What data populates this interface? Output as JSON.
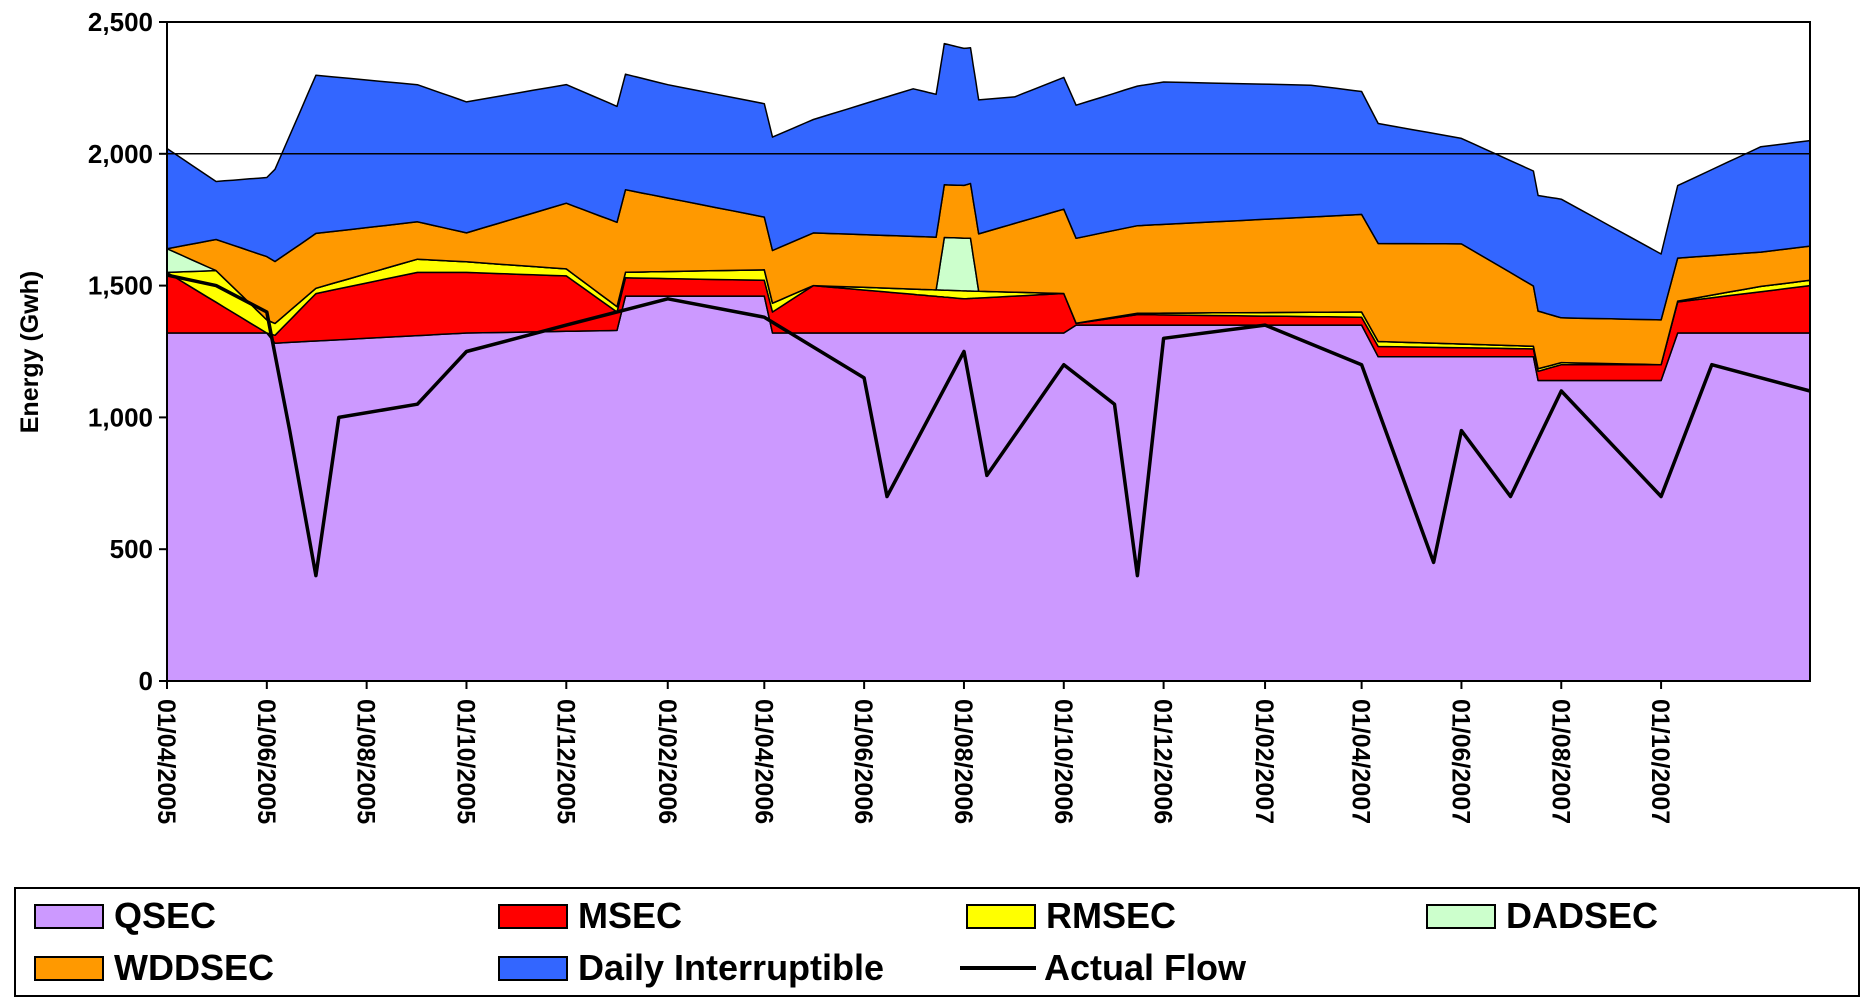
{
  "chart_data": {
    "type": "area",
    "title": "",
    "xlabel": "",
    "ylabel": "Energy (Gwh)",
    "ylim": [
      0,
      2500
    ],
    "y_ticks": [
      "0",
      "500",
      "1,000",
      "1,500",
      "2,000",
      "2,500"
    ],
    "x_range": [
      "2005-04-01",
      "2007-12-31"
    ],
    "x_ticks": [
      "01/04/2005",
      "01/06/2005",
      "01/08/2005",
      "01/10/2005",
      "01/12/2005",
      "01/02/2006",
      "01/04/2006",
      "01/06/2006",
      "01/08/2006",
      "01/10/2006",
      "01/12/2006",
      "01/02/2007",
      "01/04/2007",
      "01/06/2007",
      "01/08/2007",
      "01/10/2007"
    ],
    "x_tick_dates": [
      "2005-04-01",
      "2005-06-01",
      "2005-08-01",
      "2005-10-01",
      "2005-12-01",
      "2006-02-01",
      "2006-04-01",
      "2006-06-01",
      "2006-08-01",
      "2006-10-01",
      "2006-12-01",
      "2007-02-01",
      "2007-04-01",
      "2007-06-01",
      "2007-08-01",
      "2007-10-01"
    ],
    "gridlines": [
      2000
    ],
    "legend": "bottom",
    "stacked": true,
    "series": [
      {
        "name": "QSEC",
        "color": "#cc99ff",
        "points": [
          [
            "2005-04-01",
            1320
          ],
          [
            "2005-06-01",
            1320
          ],
          [
            "2005-06-01",
            1280
          ],
          [
            "2005-10-01",
            1320
          ],
          [
            "2006-01-01",
            1330
          ],
          [
            "2006-01-01",
            1460
          ],
          [
            "2006-04-01",
            1460
          ],
          [
            "2006-04-01",
            1320
          ],
          [
            "2006-10-01",
            1320
          ],
          [
            "2006-10-01",
            1350
          ],
          [
            "2007-04-01",
            1350
          ],
          [
            "2007-04-01",
            1230
          ],
          [
            "2007-07-15",
            1230
          ],
          [
            "2007-07-15",
            1140
          ],
          [
            "2007-10-01",
            1140
          ],
          [
            "2007-10-01",
            1320
          ],
          [
            "2007-12-31",
            1320
          ]
        ]
      },
      {
        "name": "MSEC",
        "color": "#ff0000",
        "points": [
          [
            "2005-04-01",
            230
          ],
          [
            "2005-06-01",
            0
          ],
          [
            "2005-07-01",
            180
          ],
          [
            "2005-09-01",
            240
          ],
          [
            "2005-12-01",
            210
          ],
          [
            "2006-01-01",
            70
          ],
          [
            "2006-04-01",
            60
          ],
          [
            "2006-05-01",
            180
          ],
          [
            "2006-08-01",
            130
          ],
          [
            "2006-10-01",
            150
          ],
          [
            "2006-10-01",
            0
          ],
          [
            "2006-11-15",
            40
          ],
          [
            "2007-04-01",
            30
          ],
          [
            "2007-04-01",
            40
          ],
          [
            "2007-07-15",
            30
          ],
          [
            "2007-08-01",
            60
          ],
          [
            "2007-10-01",
            60
          ],
          [
            "2007-10-01",
            110
          ],
          [
            "2007-12-31",
            180
          ]
        ]
      },
      {
        "name": "RMSEC",
        "color": "#ffff00",
        "points": [
          [
            "2005-04-01",
            0
          ],
          [
            "2005-05-01",
            120
          ],
          [
            "2005-06-01",
            50
          ],
          [
            "2005-07-01",
            20
          ],
          [
            "2005-09-01",
            50
          ],
          [
            "2005-10-01",
            40
          ],
          [
            "2006-01-01",
            20
          ],
          [
            "2006-04-01",
            40
          ],
          [
            "2006-05-01",
            0
          ],
          [
            "2006-08-01",
            30
          ],
          [
            "2006-10-01",
            0
          ],
          [
            "2007-04-01",
            20
          ],
          [
            "2007-07-15",
            10
          ],
          [
            "2007-10-01",
            0
          ],
          [
            "2007-12-01",
            20
          ]
        ]
      },
      {
        "name": "DADSEC",
        "color": "#ccffcc",
        "points": [
          [
            "2005-04-01",
            90
          ],
          [
            "2005-05-01",
            0
          ],
          [
            "2006-07-15",
            0
          ],
          [
            "2006-07-20",
            200
          ],
          [
            "2006-08-05",
            200
          ],
          [
            "2006-08-10",
            0
          ]
        ]
      },
      {
        "name": "WDDSEC",
        "color": "#ff9900",
        "points": [
          [
            "2005-04-01",
            0
          ],
          [
            "2005-06-01",
            240
          ],
          [
            "2005-10-01",
            110
          ],
          [
            "2006-01-01",
            320
          ],
          [
            "2006-04-01",
            200
          ],
          [
            "2006-08-01",
            200
          ],
          [
            "2006-10-01",
            320
          ],
          [
            "2007-04-01",
            370
          ],
          [
            "2007-06-01",
            380
          ],
          [
            "2007-08-01",
            170
          ],
          [
            "2007-10-01",
            170
          ],
          [
            "2007-12-01",
            130
          ]
        ]
      },
      {
        "name": "Daily Interruptible",
        "color": "#3366ff",
        "points": [
          [
            "2005-04-01",
            380
          ],
          [
            "2005-05-01",
            220
          ],
          [
            "2005-06-01",
            300
          ],
          [
            "2005-07-01",
            600
          ],
          [
            "2005-09-01",
            520
          ],
          [
            "2005-12-01",
            450
          ],
          [
            "2006-02-01",
            430
          ],
          [
            "2006-05-01",
            430
          ],
          [
            "2006-07-01",
            560
          ],
          [
            "2006-09-01",
            480
          ],
          [
            "2006-12-01",
            540
          ],
          [
            "2007-03-01",
            500
          ],
          [
            "2007-06-01",
            400
          ],
          [
            "2007-08-01",
            450
          ],
          [
            "2007-10-01",
            250
          ],
          [
            "2007-12-01",
            400
          ]
        ]
      },
      {
        "name": "Actual Flow",
        "color": "#000000",
        "points": [
          [
            "2005-04-01",
            1540
          ],
          [
            "2005-05-01",
            1500
          ],
          [
            "2005-06-01",
            1400
          ],
          [
            "2005-06-15",
            950
          ],
          [
            "2005-07-01",
            400
          ],
          [
            "2005-07-15",
            1000
          ],
          [
            "2005-09-01",
            1050
          ],
          [
            "2005-10-01",
            1250
          ],
          [
            "2005-12-01",
            1350
          ],
          [
            "2006-02-01",
            1450
          ],
          [
            "2006-04-01",
            1380
          ],
          [
            "2006-06-01",
            1150
          ],
          [
            "2006-06-15",
            700
          ],
          [
            "2006-08-01",
            1250
          ],
          [
            "2006-08-15",
            780
          ],
          [
            "2006-10-01",
            1200
          ],
          [
            "2006-11-01",
            1050
          ],
          [
            "2006-11-15",
            400
          ],
          [
            "2006-12-01",
            1300
          ],
          [
            "2007-02-01",
            1350
          ],
          [
            "2007-04-01",
            1200
          ],
          [
            "2007-05-15",
            450
          ],
          [
            "2007-06-01",
            950
          ],
          [
            "2007-07-01",
            700
          ],
          [
            "2007-08-01",
            1100
          ],
          [
            "2007-10-01",
            700
          ],
          [
            "2007-11-01",
            1200
          ],
          [
            "2007-12-31",
            1100
          ]
        ]
      }
    ]
  }
}
